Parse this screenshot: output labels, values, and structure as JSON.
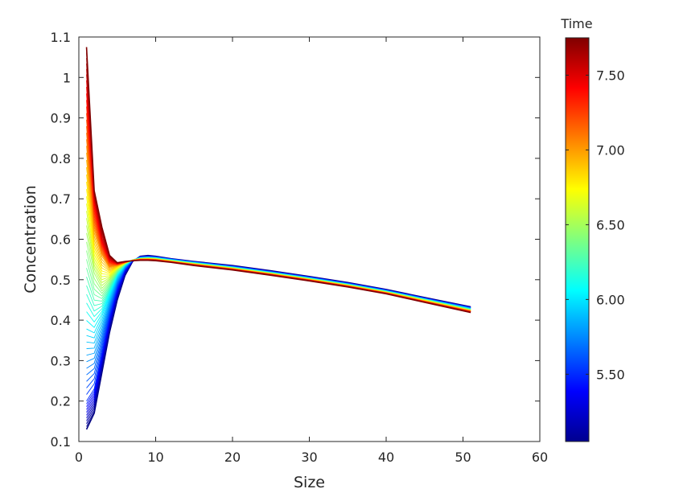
{
  "chart_data": {
    "type": "line",
    "title": "",
    "xlabel": "Size",
    "ylabel": "Concentration",
    "xlim": [
      0,
      60
    ],
    "ylim": [
      0.1,
      1.1
    ],
    "xticks": [
      0,
      10,
      20,
      30,
      40,
      50,
      60
    ],
    "yticks": [
      0.1,
      0.2,
      0.3,
      0.4,
      0.5,
      0.6,
      0.7,
      0.8,
      0.9,
      1,
      1.1
    ],
    "xtick_labels": [
      "0",
      "10",
      "20",
      "30",
      "40",
      "50",
      "60"
    ],
    "ytick_labels": [
      "0.1",
      "0.2",
      "0.3",
      "0.4",
      "0.5",
      "0.6",
      "0.7",
      "0.8",
      "0.9",
      "1",
      "1.1"
    ],
    "grid": false,
    "colormap": "jet",
    "colorbar": {
      "label": "Time",
      "range": [
        5.05,
        7.75
      ],
      "ticks": [
        5.5,
        6.0,
        6.5,
        7.0,
        7.5
      ],
      "tick_labels": [
        "5.50",
        "6.00",
        "6.50",
        "7.00",
        "7.50"
      ]
    },
    "x": [
      1,
      2,
      3,
      4,
      5,
      6,
      7,
      8,
      9,
      10,
      12,
      15,
      20,
      25,
      30,
      35,
      40,
      45,
      51
    ],
    "series": [
      {
        "time": 5.05,
        "values": [
          0.13,
          0.17,
          0.27,
          0.37,
          0.45,
          0.51,
          0.545,
          0.558,
          0.56,
          0.558,
          0.552,
          0.545,
          0.535,
          0.522,
          0.508,
          0.493,
          0.476,
          0.456,
          0.433
        ]
      },
      {
        "time": 5.5,
        "values": [
          0.2,
          0.23,
          0.32,
          0.41,
          0.48,
          0.525,
          0.548,
          0.556,
          0.557,
          0.556,
          0.551,
          0.544,
          0.533,
          0.52,
          0.506,
          0.491,
          0.474,
          0.454,
          0.431
        ]
      },
      {
        "time": 6.0,
        "values": [
          0.38,
          0.37,
          0.41,
          0.46,
          0.51,
          0.535,
          0.549,
          0.554,
          0.555,
          0.554,
          0.549,
          0.542,
          0.531,
          0.518,
          0.504,
          0.489,
          0.472,
          0.452,
          0.428
        ]
      },
      {
        "time": 6.5,
        "values": [
          0.62,
          0.52,
          0.48,
          0.5,
          0.525,
          0.54,
          0.549,
          0.552,
          0.553,
          0.552,
          0.547,
          0.54,
          0.529,
          0.516,
          0.502,
          0.487,
          0.47,
          0.45,
          0.425
        ]
      },
      {
        "time": 7.0,
        "values": [
          0.82,
          0.62,
          0.56,
          0.53,
          0.535,
          0.542,
          0.548,
          0.551,
          0.551,
          0.55,
          0.545,
          0.538,
          0.527,
          0.514,
          0.5,
          0.485,
          0.468,
          0.447,
          0.423
        ]
      },
      {
        "time": 7.5,
        "values": [
          1.0,
          0.7,
          0.6,
          0.55,
          0.54,
          0.544,
          0.547,
          0.549,
          0.549,
          0.548,
          0.544,
          0.536,
          0.525,
          0.512,
          0.498,
          0.483,
          0.466,
          0.445,
          0.42
        ]
      },
      {
        "time": 7.75,
        "values": [
          1.075,
          0.72,
          0.63,
          0.56,
          0.542,
          0.545,
          0.547,
          0.548,
          0.548,
          0.547,
          0.543,
          0.535,
          0.524,
          0.511,
          0.497,
          0.482,
          0.465,
          0.444,
          0.419
        ]
      }
    ]
  }
}
